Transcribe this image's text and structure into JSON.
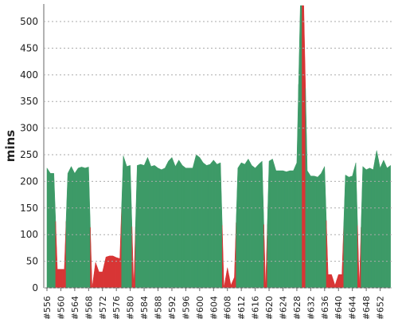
{
  "chart_data": {
    "type": "area",
    "y_label": "mins",
    "categories": [
      "#556",
      null,
      null,
      null,
      "#560",
      null,
      null,
      null,
      "#564",
      null,
      null,
      null,
      "#568",
      null,
      null,
      null,
      "#572",
      null,
      null,
      null,
      "#576",
      null,
      null,
      null,
      "#580",
      null,
      null,
      null,
      "#584",
      null,
      null,
      null,
      "#588",
      null,
      null,
      null,
      "#592",
      null,
      null,
      null,
      "#596",
      null,
      null,
      null,
      "#600",
      null,
      null,
      null,
      "#604",
      null,
      null,
      null,
      "#608",
      null,
      null,
      null,
      "#612",
      null,
      null,
      null,
      "#616",
      null,
      null,
      null,
      "#620",
      null,
      null,
      null,
      "#624",
      null,
      null,
      null,
      "#628",
      null,
      null,
      null,
      "#632",
      null,
      null,
      null,
      "#636",
      null,
      null,
      null,
      "#640",
      null,
      null,
      null,
      "#644",
      null,
      null,
      null,
      "#648",
      null,
      null,
      null,
      "#652",
      null,
      null,
      null
    ],
    "values": [
      225,
      215,
      215,
      35,
      35,
      35,
      215,
      228,
      215,
      225,
      227,
      225,
      227,
      0,
      48,
      30,
      30,
      58,
      60,
      60,
      57,
      55,
      248,
      228,
      230,
      0,
      230,
      232,
      230,
      245,
      228,
      230,
      225,
      222,
      225,
      238,
      245,
      228,
      240,
      230,
      225,
      225,
      225,
      250,
      245,
      235,
      230,
      232,
      240,
      232,
      235,
      0,
      38,
      5,
      20,
      225,
      235,
      232,
      242,
      230,
      225,
      232,
      238,
      0,
      238,
      242,
      220,
      220,
      220,
      218,
      220,
      220,
      235,
      530,
      530,
      220,
      210,
      210,
      208,
      215,
      228,
      25,
      25,
      5,
      25,
      25,
      212,
      208,
      210,
      235,
      0,
      228,
      222,
      225,
      222,
      258,
      225,
      240,
      225,
      230
    ],
    "colors": [
      "#3d9a67",
      "#3d9a67",
      "#3d9a67",
      "#d83535",
      "#d83535",
      "#d83535",
      "#3d9a67",
      "#3d9a67",
      "#3d9a67",
      "#3d9a67",
      "#3d9a67",
      "#3d9a67",
      "#3d9a67",
      "#d83535",
      "#d83535",
      "#d83535",
      "#d83535",
      "#d83535",
      "#d83535",
      "#d83535",
      "#d83535",
      "#d83535",
      "#3d9a67",
      "#3d9a67",
      "#3d9a67",
      "#d83535",
      "#3d9a67",
      "#3d9a67",
      "#3d9a67",
      "#3d9a67",
      "#3d9a67",
      "#3d9a67",
      "#3d9a67",
      "#3d9a67",
      "#3d9a67",
      "#3d9a67",
      "#3d9a67",
      "#3d9a67",
      "#3d9a67",
      "#3d9a67",
      "#3d9a67",
      "#3d9a67",
      "#3d9a67",
      "#3d9a67",
      "#3d9a67",
      "#3d9a67",
      "#3d9a67",
      "#3d9a67",
      "#3d9a67",
      "#3d9a67",
      "#3d9a67",
      "#d83535",
      "#d83535",
      "#d83535",
      "#d83535",
      "#3d9a67",
      "#3d9a67",
      "#3d9a67",
      "#3d9a67",
      "#3d9a67",
      "#3d9a67",
      "#3d9a67",
      "#3d9a67",
      "#d83535",
      "#3d9a67",
      "#3d9a67",
      "#3d9a67",
      "#3d9a67",
      "#3d9a67",
      "#3d9a67",
      "#3d9a67",
      "#3d9a67",
      "#3d9a67",
      "#3d9a67",
      "#d83535",
      "#3d9a67",
      "#3d9a67",
      "#3d9a67",
      "#3d9a67",
      "#3d9a67",
      "#3d9a67",
      "#d83535",
      "#d83535",
      "#d83535",
      "#d83535",
      "#d83535",
      "#3d9a67",
      "#3d9a67",
      "#3d9a67",
      "#3d9a67",
      "#d83535",
      "#3d9a67",
      "#3d9a67",
      "#3d9a67",
      "#3d9a67",
      "#3d9a67",
      "#3d9a67",
      "#3d9a67",
      "#3d9a67",
      "#3d9a67"
    ],
    "ylim": [
      0,
      533
    ],
    "yticks": [
      0,
      50,
      100,
      150,
      200,
      250,
      300,
      350,
      400,
      450,
      500
    ],
    "grid": true
  }
}
